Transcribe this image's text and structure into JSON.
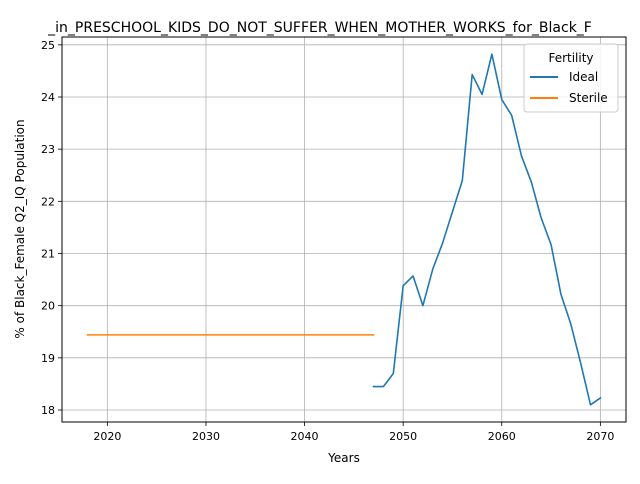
{
  "chart_data": {
    "type": "line",
    "title": "_in_PRESCHOOL_KIDS_DO_NOT_SUFFER_WHEN_MOTHER_WORKS_for_Black_F",
    "xlabel": "Years",
    "ylabel": "% of Black_Female Q2_IQ Population",
    "xlim": [
      2015.4,
      2072.6
    ],
    "ylim": [
      17.77,
      25.15
    ],
    "xticks": [
      2020,
      2030,
      2040,
      2050,
      2060,
      2070
    ],
    "xtick_labels": [
      "2020",
      "2030",
      "2040",
      "2050",
      "2060",
      "2070"
    ],
    "yticks": [
      18,
      19,
      20,
      21,
      22,
      23,
      24,
      25
    ],
    "ytick_labels": [
      "18",
      "19",
      "20",
      "21",
      "22",
      "23",
      "24",
      "25"
    ],
    "grid": true,
    "legend": {
      "title": "Fertility",
      "placement": "top-right"
    },
    "series": [
      {
        "name": "Ideal",
        "color": "#1f77b4",
        "x": [
          2047,
          2048,
          2049,
          2050,
          2051,
          2052,
          2053,
          2054,
          2055,
          2056,
          2057,
          2058,
          2059,
          2060,
          2061,
          2062,
          2063,
          2064,
          2065,
          2066,
          2067,
          2068,
          2069,
          2070
        ],
        "y": [
          18.45,
          18.45,
          18.7,
          20.38,
          20.57,
          20.0,
          20.7,
          21.2,
          21.8,
          22.4,
          24.43,
          24.05,
          24.82,
          23.95,
          23.65,
          22.87,
          22.37,
          21.68,
          21.17,
          20.22,
          19.65,
          18.9,
          18.1,
          18.23
        ]
      },
      {
        "name": "Sterile",
        "color": "#ff7f0e",
        "x": [
          2018,
          2019,
          2020,
          2021,
          2022,
          2023,
          2024,
          2025,
          2026,
          2027,
          2028,
          2029,
          2030,
          2031,
          2032,
          2033,
          2034,
          2035,
          2036,
          2037,
          2038,
          2039,
          2040,
          2041,
          2042,
          2043,
          2044,
          2045,
          2046,
          2047
        ],
        "y": [
          19.44,
          19.44,
          19.44,
          19.44,
          19.44,
          19.44,
          19.44,
          19.44,
          19.44,
          19.44,
          19.44,
          19.44,
          19.44,
          19.44,
          19.44,
          19.44,
          19.44,
          19.44,
          19.44,
          19.44,
          19.44,
          19.44,
          19.44,
          19.44,
          19.44,
          19.44,
          19.44,
          19.44,
          19.44,
          19.44
        ]
      }
    ]
  }
}
